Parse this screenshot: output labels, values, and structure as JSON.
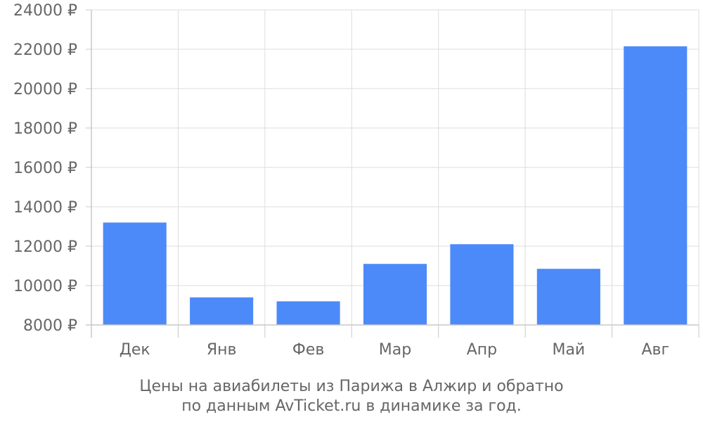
{
  "chart_data": {
    "type": "bar",
    "categories": [
      "Дек",
      "Янв",
      "Фев",
      "Мар",
      "Апр",
      "Май",
      "Авг"
    ],
    "values": [
      13200,
      9400,
      9200,
      11100,
      12100,
      10850,
      22150
    ],
    "ylim": [
      8000,
      24000
    ],
    "yticks": [
      8000,
      10000,
      12000,
      14000,
      16000,
      18000,
      20000,
      22000,
      24000
    ],
    "ytick_labels": [
      "8000 ₽",
      "10000 ₽",
      "12000 ₽",
      "14000 ₽",
      "16000 ₽",
      "18000 ₽",
      "20000 ₽",
      "22000 ₽",
      "24000 ₽"
    ],
    "grid": true,
    "bar_color": "#4d8af9",
    "caption": {
      "line1": "Цены на авиабилеты из Парижа в Алжир и обратно",
      "line2": "по данным AvTicket.ru в динамике за год."
    }
  }
}
